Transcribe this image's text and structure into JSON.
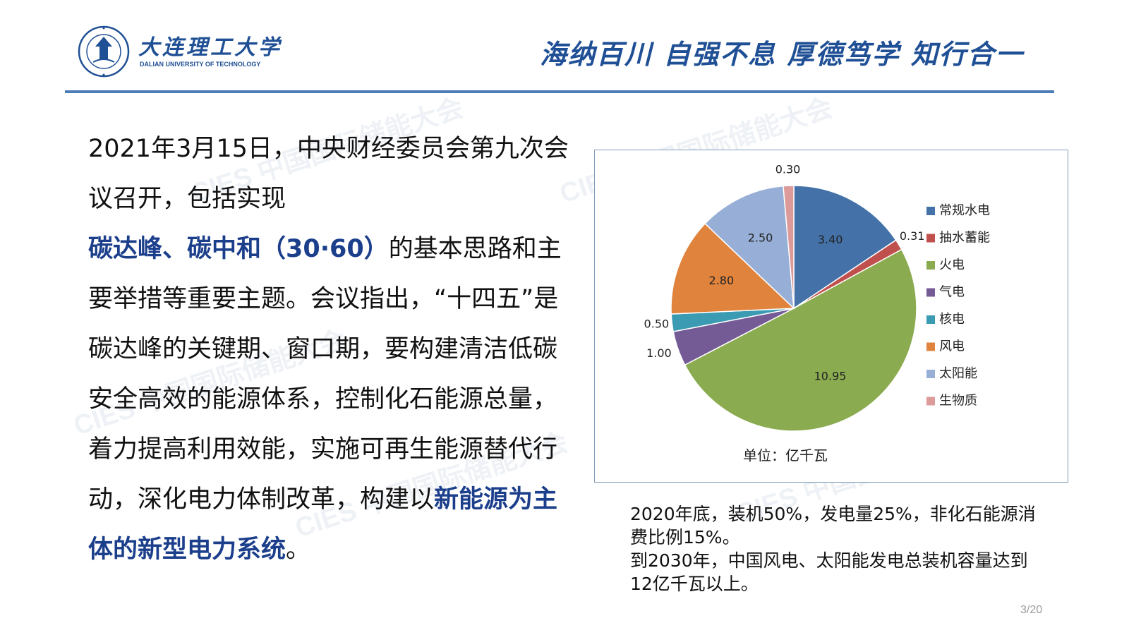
{
  "header": {
    "university_cn": "大连理工大学",
    "university_en": "DALIAN UNIVERSITY OF TECHNOLOGY",
    "motto": "海纳百川 自强不息 厚德笃学 知行合一",
    "logo_icon": "university-seal-icon",
    "colors": {
      "brand": "#1f4f95",
      "rule": "#4a7cb6"
    }
  },
  "watermark": {
    "text": "CIES 中国国际储能大会"
  },
  "main_text": {
    "p1": "2021年3月15日，中央财经委员会第九次会议召开，包括实现",
    "h1": "碳达峰、碳中和（30·60）",
    "p2": "的基本思路和主要举措等重要主题。会议指出，“十四五”是碳达峰的关键期、窗口期，要构建清洁低碳安全高效的能源体系，控制化石能源总量，着力提高利用效能，实施可再生能源替代行动，深化电力体制改革，构建以",
    "h2": "新能源为主体的新型电力系统",
    "p3": "。"
  },
  "chart_data": {
    "type": "pie",
    "unit_label": "单位：亿千瓦",
    "legend_position": "right",
    "labels": [
      "常规水电",
      "抽水蓄能",
      "火电",
      "气电",
      "核电",
      "风电",
      "太阳能",
      "生物质"
    ],
    "values": [
      3.4,
      0.31,
      10.95,
      1.0,
      0.5,
      2.8,
      2.5,
      0.3
    ],
    "value_labels": [
      "3.40",
      "0.31",
      "10.95",
      "1.00",
      "0.50",
      "2.80",
      "2.50",
      "0.30"
    ],
    "colors": [
      "#4472a8",
      "#c0504d",
      "#8aab4f",
      "#745b95",
      "#3b9bb2",
      "#e0833d",
      "#97aed6",
      "#dc9a9a"
    ]
  },
  "note": {
    "line1": "2020年底，装机50%，发电量25%，非化石能源消费比例15%。",
    "line2": "到2030年，中国风电、太阳能发电总装机容量达到12亿千瓦以上。"
  },
  "page_number": "3/20"
}
